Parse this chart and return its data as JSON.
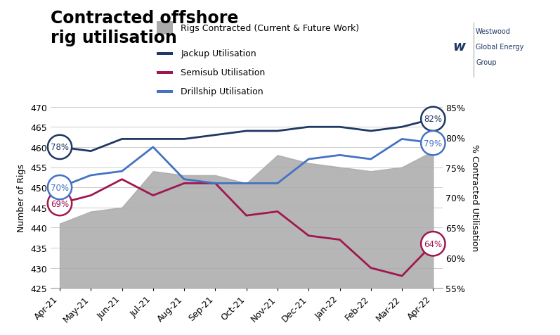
{
  "title": "Contracted offshore\nrig utilisation",
  "ylabel_left": "Number of Rigs",
  "ylabel_right": "% Contracted Utilisation",
  "categories": [
    "Apr-21",
    "May-21",
    "Jun-21",
    "Jul-21",
    "Aug-21",
    "Sep-21",
    "Oct-21",
    "Nov-21",
    "Dec-21",
    "Jan-22",
    "Feb-22",
    "Mar-22",
    "Apr-22"
  ],
  "rigs_contracted": [
    441,
    444,
    445,
    454,
    453,
    453,
    451,
    458,
    456,
    455,
    454,
    455,
    459
  ],
  "jackup_utilisation": [
    460,
    459,
    462,
    462,
    462,
    463,
    464,
    464,
    465,
    465,
    464,
    465,
    467
  ],
  "semisub_utilisation": [
    446,
    448,
    452,
    448,
    451,
    451,
    443,
    444,
    438,
    437,
    430,
    428,
    436
  ],
  "drillship_utilisation": [
    450,
    453,
    454,
    460,
    452,
    451,
    451,
    451,
    457,
    458,
    457,
    462,
    461
  ],
  "ylim_left": [
    425,
    470
  ],
  "ylim_right": [
    55,
    85
  ],
  "yticks_left": [
    425,
    430,
    435,
    440,
    445,
    450,
    455,
    460,
    465,
    470
  ],
  "yticks_right": [
    55,
    60,
    65,
    70,
    75,
    80,
    85
  ],
  "gray_color": "#AAAAAA",
  "jackup_color": "#1F3864",
  "semisub_color": "#A0174F",
  "drillship_color": "#4472C4",
  "background_color": "#FFFFFF",
  "grid_color": "#CCCCCC",
  "title_fontsize": 17,
  "axis_label_fontsize": 9,
  "tick_fontsize": 9,
  "legend_fontsize": 9,
  "logo_color": "#1F3864",
  "annotations": [
    {
      "xi": 0,
      "pct": "78%",
      "series": "jackup",
      "yval": 460
    },
    {
      "xi": 12,
      "pct": "82%",
      "series": "jackup",
      "yval": 467
    },
    {
      "xi": 0,
      "pct": "69%",
      "series": "semisub",
      "yval": 446
    },
    {
      "xi": 12,
      "pct": "64%",
      "series": "semisub",
      "yval": 436
    },
    {
      "xi": 0,
      "pct": "70%",
      "series": "drillship",
      "yval": 450
    },
    {
      "xi": 12,
      "pct": "79%",
      "series": "drillship",
      "yval": 461
    }
  ]
}
